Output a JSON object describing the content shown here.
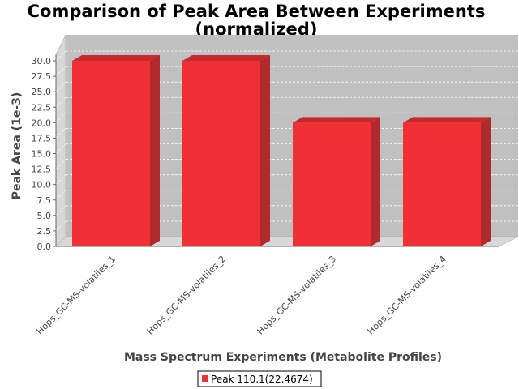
{
  "chart_data": {
    "type": "bar",
    "title_line1": "Comparison of Peak Area Between Experiments",
    "title_line2": "(normalized)",
    "xlabel": "Mass Spectrum Experiments (Metabolite Profiles)",
    "ylabel": "Peak Area (1e-3)",
    "categories": [
      "Hops_GC-MS-volatiles_1",
      "Hops_GC-MS-volatiles_2",
      "Hops_GC-MS-volatiles_3",
      "Hops_GC-MS-volatiles_4"
    ],
    "series": [
      {
        "name": "Peak 110.1(22.4674)",
        "values": [
          30.0,
          30.0,
          20.0,
          20.0
        ]
      }
    ],
    "ylim": [
      0,
      30.0
    ],
    "yticks": [
      "0.0",
      "2.5",
      "5.0",
      "7.5",
      "10.0",
      "12.5",
      "15.0",
      "17.5",
      "20.0",
      "22.5",
      "25.0",
      "27.5",
      "30.0"
    ],
    "grid": true,
    "legend_position": "bottom",
    "colors": {
      "bar": "#f03035",
      "bar_top": "#c42a2e",
      "bar_side": "#b02a2d",
      "plot_bg": "#c0c0c0",
      "wall": "#d8d8d8"
    }
  }
}
